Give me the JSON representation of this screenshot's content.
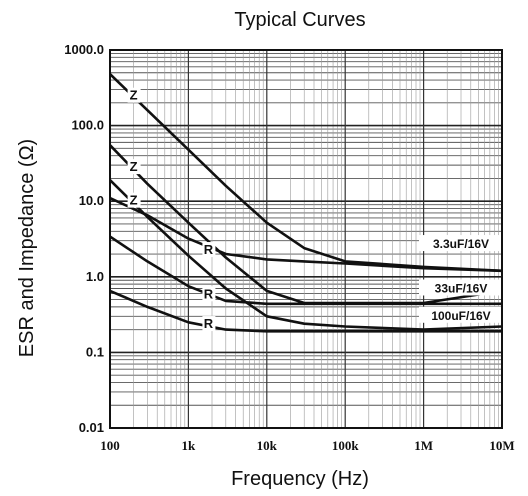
{
  "chart_data": {
    "type": "line",
    "title": "Typical Curves",
    "xlabel": "Frequency (Hz)",
    "ylabel": "ESR and Impedance (Ω)",
    "xscale": "log",
    "yscale": "log",
    "xlim": [
      100,
      10000000
    ],
    "ylim": [
      0.01,
      1000
    ],
    "grid": true,
    "legend": "none",
    "x_ticks": [
      {
        "value": 100,
        "label": "100"
      },
      {
        "value": 1000,
        "label": "1k"
      },
      {
        "value": 10000,
        "label": "10k"
      },
      {
        "value": 100000,
        "label": "100k"
      },
      {
        "value": 1000000,
        "label": "1M"
      },
      {
        "value": 10000000,
        "label": "10M"
      }
    ],
    "y_ticks": [
      {
        "value": 0.01,
        "label": "0.01"
      },
      {
        "value": 0.1,
        "label": "0.1"
      },
      {
        "value": 1,
        "label": "1.0"
      },
      {
        "value": 10,
        "label": "10.0"
      },
      {
        "value": 100,
        "label": "100.0"
      },
      {
        "value": 1000,
        "label": "1000.0"
      }
    ],
    "series": [
      {
        "name": "3.3uF/16V",
        "label": "3.3uF/16V",
        "color": "#111111",
        "impedance": {
          "x": [
            100,
            300,
            1000,
            3000,
            10000,
            30000,
            100000,
            1000000,
            10000000
          ],
          "y": [
            480,
            160,
            48,
            16,
            5.2,
            2.4,
            1.6,
            1.35,
            1.2
          ]
        },
        "esr": {
          "x": [
            100,
            300,
            1000,
            3000,
            10000,
            30000,
            100000,
            1000000,
            10000000
          ],
          "y": [
            11,
            6.5,
            3.2,
            2.0,
            1.7,
            1.6,
            1.5,
            1.3,
            1.2
          ]
        }
      },
      {
        "name": "33uF/16V",
        "label": "33uF/16V",
        "color": "#111111",
        "impedance": {
          "x": [
            100,
            300,
            1000,
            3000,
            10000,
            30000,
            100000,
            1000000,
            10000000
          ],
          "y": [
            55,
            17,
            5.2,
            1.8,
            0.65,
            0.45,
            0.45,
            0.45,
            0.65
          ]
        },
        "esr": {
          "x": [
            100,
            300,
            1000,
            3000,
            10000,
            30000,
            100000,
            1000000,
            10000000
          ],
          "y": [
            3.4,
            1.6,
            0.75,
            0.48,
            0.44,
            0.44,
            0.44,
            0.44,
            0.44
          ]
        }
      },
      {
        "name": "100uF/16V",
        "label": "100uF/16V",
        "color": "#111111",
        "impedance": {
          "x": [
            100,
            300,
            1000,
            3000,
            10000,
            30000,
            100000,
            1000000,
            10000000
          ],
          "y": [
            19,
            6.2,
            1.9,
            0.7,
            0.3,
            0.24,
            0.22,
            0.2,
            0.22
          ]
        },
        "esr": {
          "x": [
            100,
            300,
            1000,
            3000,
            10000,
            30000,
            100000,
            1000000,
            10000000
          ],
          "y": [
            0.65,
            0.4,
            0.25,
            0.2,
            0.19,
            0.19,
            0.19,
            0.19,
            0.19
          ]
        }
      }
    ],
    "annotations": [
      {
        "text": "Z",
        "series": "3.3uF/16V",
        "curve": "impedance",
        "x": 200,
        "y": 220
      },
      {
        "text": "Z",
        "series": "33uF/16V",
        "curve": "impedance",
        "x": 200,
        "y": 25
      },
      {
        "text": "Z",
        "series": "100uF/16V",
        "curve": "impedance",
        "x": 200,
        "y": 9
      },
      {
        "text": "R",
        "series": "3.3uF/16V",
        "curve": "esr",
        "x": 1800,
        "y": 2.0
      },
      {
        "text": "R",
        "series": "33uF/16V",
        "curve": "esr",
        "x": 1800,
        "y": 0.52
      },
      {
        "text": "R",
        "series": "100uF/16V",
        "curve": "esr",
        "x": 1800,
        "y": 0.21
      }
    ]
  }
}
